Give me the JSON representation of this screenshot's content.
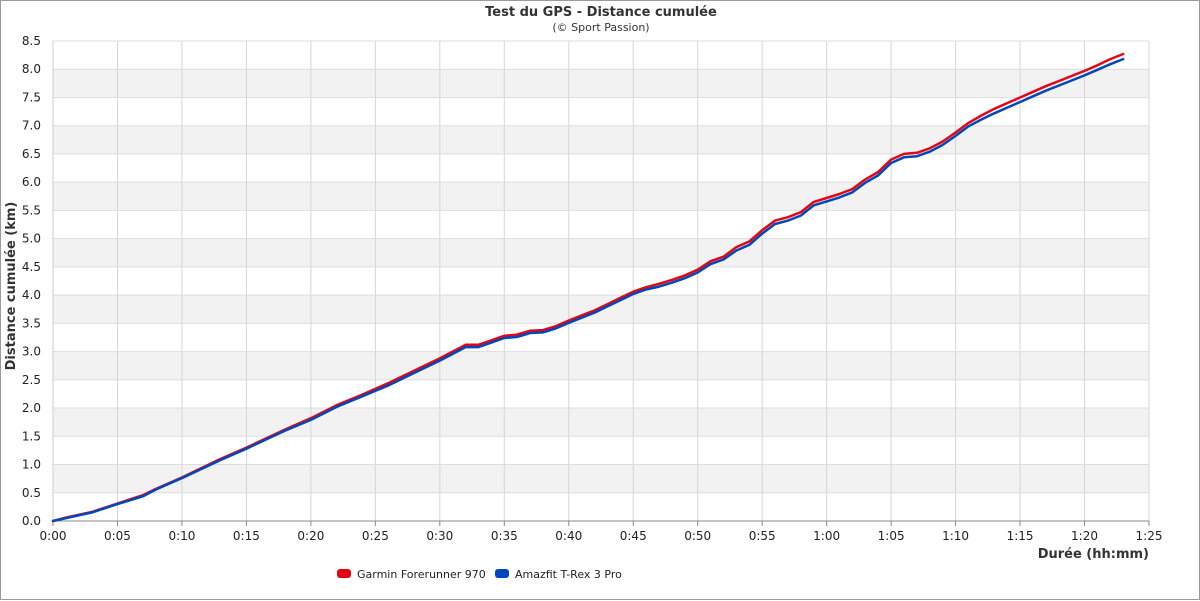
{
  "chart_data": {
    "type": "line",
    "title": "Test du GPS - Distance cumulée",
    "subtitle": "(© Sport Passion)",
    "xlabel": "Durée (hh:mm)",
    "ylabel": "Distance cumulée (km)",
    "x_unit": "minutes",
    "xlim": [
      0,
      85
    ],
    "ylim": [
      0,
      8.5
    ],
    "x_ticks": [
      "0:00",
      "0:05",
      "0:10",
      "0:15",
      "0:20",
      "0:25",
      "0:30",
      "0:35",
      "0:40",
      "0:45",
      "0:50",
      "0:55",
      "1:00",
      "1:05",
      "1:10",
      "1:15",
      "1:20",
      "1:25"
    ],
    "y_ticks": [
      "0.0",
      "0.5",
      "1.0",
      "1.5",
      "2.0",
      "2.5",
      "3.0",
      "3.5",
      "4.0",
      "4.5",
      "5.0",
      "5.5",
      "6.0",
      "6.5",
      "7.0",
      "7.5",
      "8.0",
      "8.5"
    ],
    "grid": true,
    "legend_position": "bottom-left",
    "series": [
      {
        "name": "Garmin Forerunner 970",
        "color": "#e30613",
        "x": [
          0,
          1,
          3,
          5,
          7,
          8,
          10,
          13,
          15,
          18,
          20,
          22,
          24,
          26,
          28,
          30,
          32,
          33,
          34,
          35,
          36,
          37,
          38,
          39,
          40,
          41,
          42,
          43,
          44,
          45,
          46,
          47,
          48,
          49,
          50,
          51,
          52,
          53,
          54,
          55,
          56,
          57,
          58,
          59,
          60,
          61,
          62,
          63,
          64,
          65,
          66,
          67,
          68,
          69,
          70,
          71,
          72,
          73,
          74,
          75,
          76,
          77,
          78,
          79,
          80,
          81,
          82,
          83
        ],
        "values": [
          0,
          0.06,
          0.16,
          0.31,
          0.46,
          0.57,
          0.77,
          1.1,
          1.3,
          1.62,
          1.82,
          2.05,
          2.24,
          2.44,
          2.66,
          2.88,
          3.12,
          3.12,
          3.2,
          3.28,
          3.3,
          3.37,
          3.38,
          3.45,
          3.55,
          3.64,
          3.73,
          3.84,
          3.95,
          4.06,
          4.14,
          4.2,
          4.27,
          4.35,
          4.45,
          4.6,
          4.68,
          4.85,
          4.95,
          5.15,
          5.32,
          5.38,
          5.47,
          5.65,
          5.72,
          5.79,
          5.88,
          6.05,
          6.18,
          6.4,
          6.5,
          6.52,
          6.6,
          6.72,
          6.88,
          7.05,
          7.18,
          7.3,
          7.4,
          7.5,
          7.6,
          7.7,
          7.79,
          7.88,
          7.97,
          8.07,
          8.18,
          8.27
        ]
      },
      {
        "name": "Amazfit T-Rex 3 Pro",
        "color": "#0047bb",
        "x": [
          0,
          1,
          3,
          5,
          7,
          8,
          10,
          13,
          15,
          18,
          20,
          22,
          24,
          26,
          28,
          30,
          32,
          33,
          34,
          35,
          36,
          37,
          38,
          39,
          40,
          41,
          42,
          43,
          44,
          45,
          46,
          47,
          48,
          49,
          50,
          51,
          52,
          53,
          54,
          55,
          56,
          57,
          58,
          59,
          60,
          61,
          62,
          63,
          64,
          65,
          66,
          67,
          68,
          69,
          70,
          71,
          72,
          73,
          74,
          75,
          76,
          77,
          78,
          79,
          80,
          81,
          82,
          83
        ],
        "values": [
          0,
          0.05,
          0.15,
          0.3,
          0.44,
          0.56,
          0.76,
          1.08,
          1.28,
          1.6,
          1.79,
          2.02,
          2.21,
          2.4,
          2.62,
          2.84,
          3.08,
          3.08,
          3.16,
          3.24,
          3.26,
          3.33,
          3.34,
          3.41,
          3.51,
          3.6,
          3.69,
          3.8,
          3.91,
          4.02,
          4.1,
          4.15,
          4.22,
          4.3,
          4.4,
          4.55,
          4.63,
          4.79,
          4.89,
          5.09,
          5.26,
          5.32,
          5.41,
          5.59,
          5.66,
          5.73,
          5.82,
          5.99,
          6.12,
          6.34,
          6.44,
          6.46,
          6.54,
          6.66,
          6.82,
          6.99,
          7.11,
          7.22,
          7.32,
          7.42,
          7.52,
          7.62,
          7.71,
          7.8,
          7.89,
          7.99,
          8.09,
          8.18
        ]
      }
    ]
  }
}
